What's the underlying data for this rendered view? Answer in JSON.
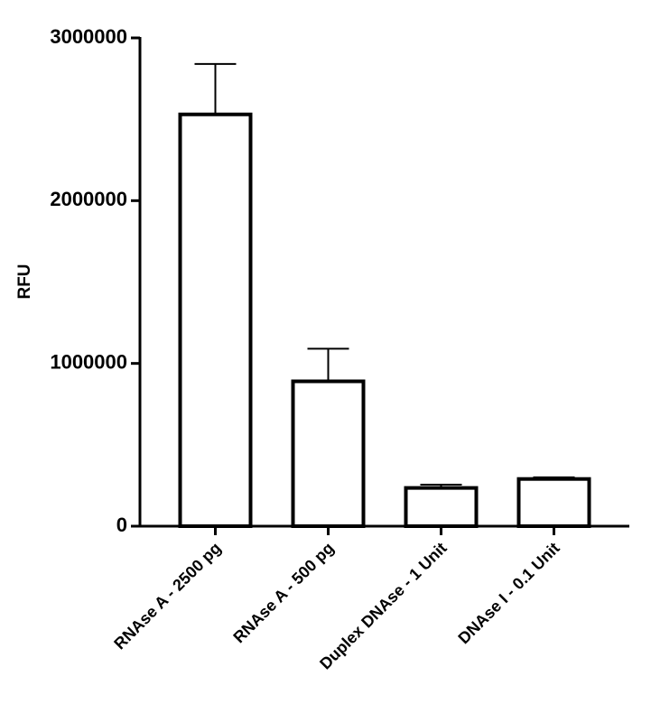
{
  "chart_data": {
    "type": "bar",
    "y_label": "RFU",
    "categories": [
      "RNAse A - 2500 pg",
      "RNAse A - 500 pg",
      "Duplex DNAse - 1 Unit",
      "DNAse I - 0.1 Unit"
    ],
    "values": [
      2530000,
      890000,
      235000,
      290000
    ],
    "errors": [
      310000,
      200000,
      20000,
      10000
    ],
    "color": "#ffffff",
    "ylim": [
      0,
      3000000
    ],
    "yticks": [
      0,
      1000000,
      2000000,
      3000000
    ],
    "grid": false
  }
}
